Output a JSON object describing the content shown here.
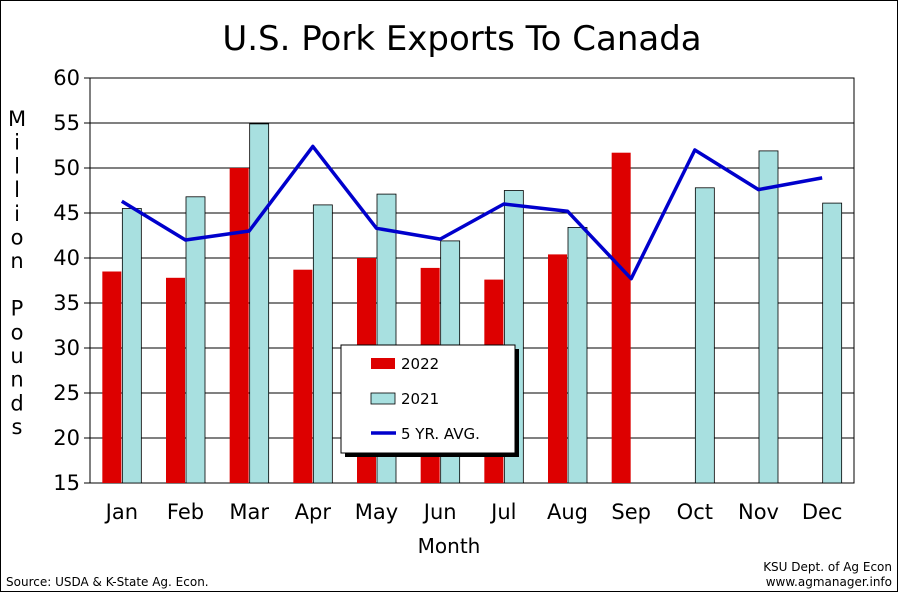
{
  "chart_data": {
    "type": "bar",
    "title": "U.S. Pork Exports To Canada",
    "xlabel": "Month",
    "ylabel": "Million Pounds",
    "ylim": [
      15,
      60
    ],
    "yticks": [
      15,
      20,
      25,
      30,
      35,
      40,
      45,
      50,
      55,
      60
    ],
    "grid": true,
    "legend": "center",
    "categories": [
      "Jan",
      "Feb",
      "Mar",
      "Apr",
      "May",
      "Jun",
      "Jul",
      "Aug",
      "Sep",
      "Oct",
      "Nov",
      "Dec"
    ],
    "series": [
      {
        "name": "2022",
        "kind": "bar",
        "color": "#dd0000",
        "values": [
          38.5,
          37.8,
          50.0,
          38.7,
          40.0,
          38.9,
          37.6,
          40.4,
          51.7,
          null,
          null,
          null
        ]
      },
      {
        "name": "2021",
        "kind": "bar",
        "color": "#a8e0e0",
        "values": [
          45.5,
          46.8,
          54.9,
          45.9,
          47.1,
          41.9,
          47.5,
          43.4,
          null,
          47.8,
          51.9,
          46.1
        ]
      },
      {
        "name": "5 YR. AVG.",
        "kind": "line",
        "color": "#0000cc",
        "values": [
          46.3,
          42.0,
          43.0,
          52.4,
          43.3,
          42.1,
          46.0,
          45.2,
          37.7,
          52.0,
          47.6,
          48.9
        ]
      }
    ]
  },
  "footer": {
    "source": "Source:  USDA & K-State Ag. Econ.",
    "credit_line1": "KSU Dept. of Ag Econ",
    "credit_line2": "www.agmanager.info"
  }
}
